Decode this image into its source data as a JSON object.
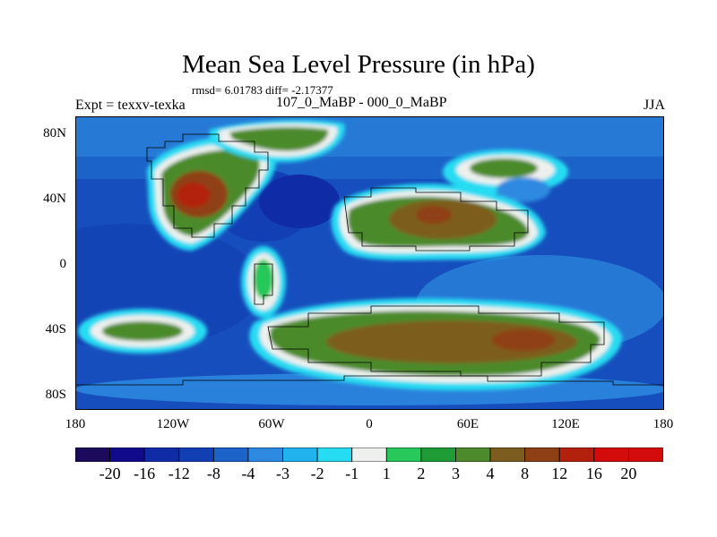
{
  "title": "Mean Sea Level Pressure (in hPa)",
  "stats_text": "rmsd= 6.01783 diff= -2.17377",
  "expt_text": "Expt = texxv-texka",
  "diff_label": "107_0_MaBP - 000_0_MaBP",
  "season": "JJA",
  "lat_labels": [
    "80N",
    "40N",
    "0",
    "40S",
    "80S"
  ],
  "lon_labels": [
    "180",
    "120W",
    "60W",
    "0",
    "60E",
    "120E",
    "180"
  ],
  "colorbar": {
    "colors": [
      "#1c0a5c",
      "#120a8c",
      "#0f2ba6",
      "#1240b4",
      "#1b63c8",
      "#2e8ae0",
      "#20b3ee",
      "#26dcf2",
      "#eef0ee",
      "#28c85a",
      "#1f9c35",
      "#4c8a2c",
      "#7d5d1f",
      "#8f3f14",
      "#b3210d",
      "#d40b0b"
    ],
    "labels": [
      "-20",
      "-16",
      "-12",
      "-8",
      "-4",
      "-3",
      "-2",
      "-1",
      "1",
      "2",
      "3",
      "4",
      "8",
      "12",
      "16",
      "20"
    ]
  }
}
